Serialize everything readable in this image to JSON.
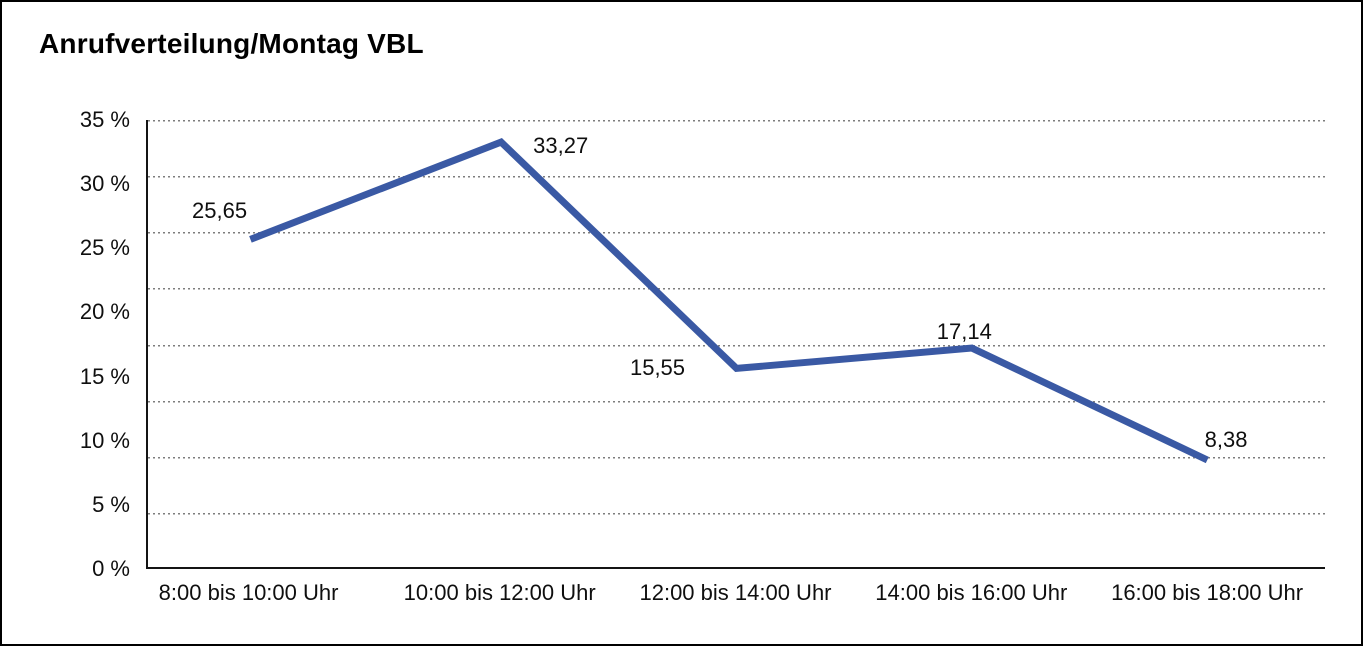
{
  "chart_data": {
    "type": "line",
    "title": "Anrufverteilung/Montag VBL",
    "categories": [
      "8:00 bis 10:00 Uhr",
      "10:00 bis 12:00 Uhr",
      "12:00 bis 14:00 Uhr",
      "14:00 bis 16:00 Uhr",
      "16:00 bis 18:00 Uhr"
    ],
    "values": [
      25.65,
      33.27,
      15.55,
      17.14,
      8.38
    ],
    "value_labels": [
      "25,65",
      "33,27",
      "15,55",
      "17,14",
      "8,38"
    ],
    "xlabel": "",
    "ylabel": "",
    "ylim": [
      0,
      35
    ],
    "yticks": [
      {
        "value": 35,
        "label": "35 %"
      },
      {
        "value": 30,
        "label": "30 %"
      },
      {
        "value": 25,
        "label": "25 %"
      },
      {
        "value": 20,
        "label": "20 %"
      },
      {
        "value": 15,
        "label": "15 %"
      },
      {
        "value": 10,
        "label": "10 %"
      },
      {
        "value": 5,
        "label": "5 %"
      },
      {
        "value": 0,
        "label": "0 %"
      }
    ],
    "grid": "horizontal dotted, 8 even intervals between 0% and 35%",
    "legend_position": "none"
  },
  "colors": {
    "line": "#3A59A4",
    "grid_dots": "#7D7D7D",
    "axis": "#141414",
    "text": "#0F0F0F",
    "frame_border": "#000000",
    "background": "#FFFFFF"
  }
}
